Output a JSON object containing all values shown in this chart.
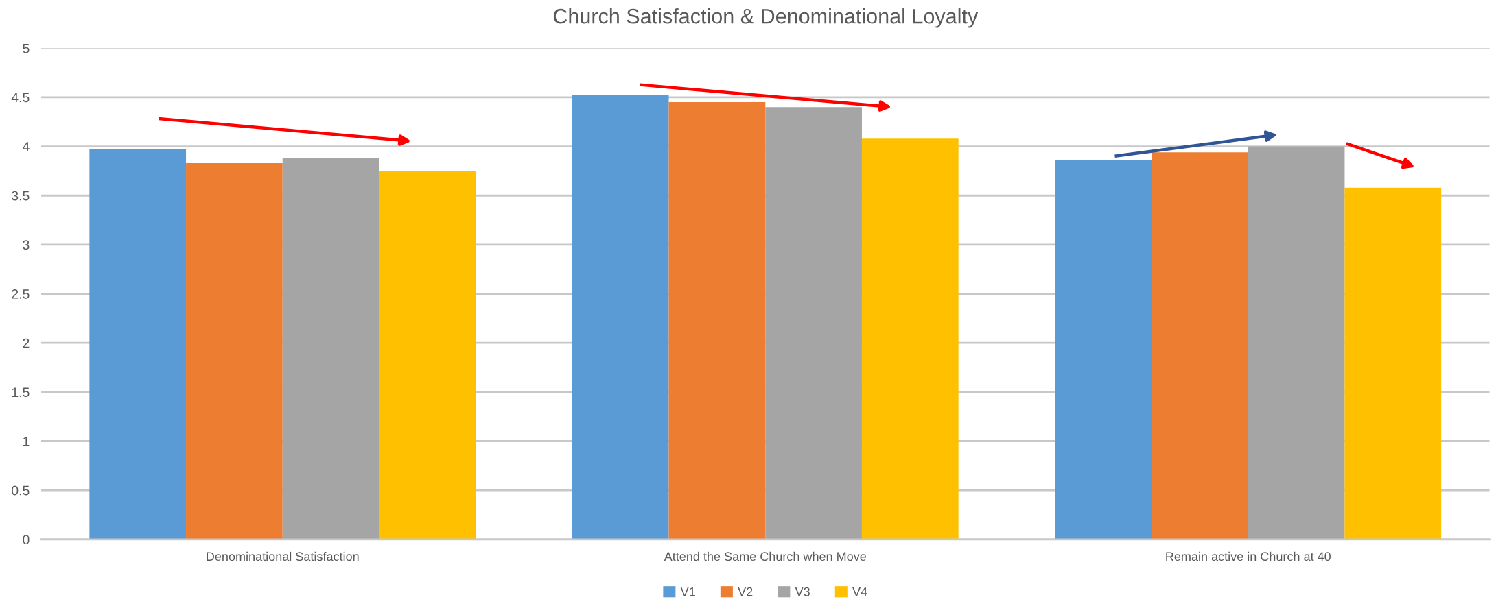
{
  "chart_data": {
    "type": "bar",
    "title": "Church Satisfaction & Denominational Loyalty",
    "categories": [
      "Denominational Satisfaction",
      "Attend the Same Church when Move",
      "Remain active in Church at 40"
    ],
    "series": [
      {
        "name": "V1",
        "color": "#5b9bd5",
        "values": [
          3.97,
          4.52,
          3.86
        ]
      },
      {
        "name": "V2",
        "color": "#ed7d31",
        "values": [
          3.83,
          4.45,
          3.94
        ]
      },
      {
        "name": "V3",
        "color": "#a5a5a5",
        "values": [
          3.88,
          4.4,
          4.0
        ]
      },
      {
        "name": "V4",
        "color": "#ffc000",
        "values": [
          3.75,
          4.08,
          3.58
        ]
      }
    ],
    "ylim": [
      0,
      5
    ],
    "yticks": [
      0,
      0.5,
      1,
      1.5,
      2,
      2.5,
      3,
      3.5,
      4,
      4.5,
      5
    ],
    "grid": "y",
    "legend": "bottom"
  }
}
